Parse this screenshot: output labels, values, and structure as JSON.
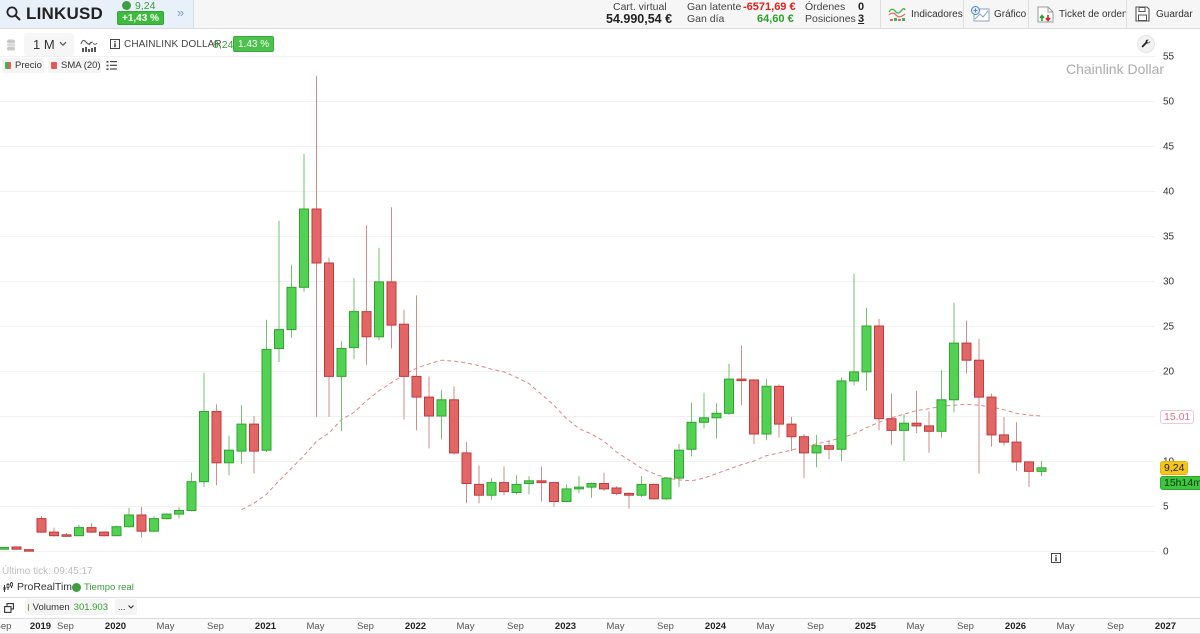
{
  "header": {
    "symbol": "LINKUSD",
    "price": "9,24",
    "change": "+1,43 %",
    "stats": {
      "virtual_label": "Cart. virtual",
      "virtual_value": "54.990,54 €",
      "latent_label": "Gan latente",
      "latent_value": "-6571,69 €",
      "day_label": "Gan día",
      "day_value": "64,60 €",
      "orders_label": "Órdenes",
      "orders_value": "0",
      "positions_label": "Posiciones",
      "positions_value": "3"
    },
    "buttons": {
      "indicators": "Indicadores",
      "chart": "Gráfico",
      "ticket": "Ticket de orden",
      "save": "Guardar"
    }
  },
  "icons": {
    "expand": "»",
    "search": "search-icon",
    "indicators": "indicators-icon",
    "chart": "add-chart-icon",
    "ticket": "order-ticket-icon",
    "save": "floppy-disk-icon",
    "wrench": "wrench-icon",
    "info": "info-icon"
  },
  "toolbar": {
    "timeframe": "1 M",
    "instrument_name": "CHAINLINK DOLLAR",
    "price": "9,24",
    "change": "1.43 %"
  },
  "legend": {
    "price": "Precio",
    "sma": "SMA (20)"
  },
  "watermark": "Chainlink Dollar",
  "price_tags": {
    "sma": "15.01",
    "last": "9,24",
    "countdown": "15h14m"
  },
  "footer": {
    "last_tick": "Último tick: 09:45:17",
    "provider": "ProRealTime",
    "realtime": "Tiempo real",
    "volume_label": "Volumen",
    "volume_value": "301.903",
    "more": "..."
  },
  "colors": {
    "up": "#52d152",
    "up_border": "#2ea62e",
    "up_wick": "#74c074",
    "down": "#e26666",
    "down_border": "#c23a3a",
    "down_wick": "#cf8d8d",
    "sma": "#e28585",
    "grid": "#f1f1f1",
    "axis_text": "#333333"
  },
  "chart_data": {
    "type": "candlestick",
    "title": "Chainlink Dollar",
    "symbol": "LINKUSD",
    "timeframe": "1 M",
    "xlabel": "",
    "ylabel": "",
    "ylim": [
      0,
      55
    ],
    "grid": true,
    "legend": [
      "Precio",
      "SMA (20)"
    ],
    "y_ticks": [
      0,
      5,
      10,
      15,
      20,
      25,
      30,
      35,
      40,
      45,
      50,
      55
    ],
    "x_ticks": [
      {
        "label": "Sep",
        "at": 0,
        "major": false
      },
      {
        "label": "2019",
        "at": 3,
        "major": true
      },
      {
        "label": "Sep",
        "at": 5,
        "major": false
      },
      {
        "label": "2020",
        "at": 9,
        "major": true
      },
      {
        "label": "May",
        "at": 13,
        "major": false
      },
      {
        "label": "Sep",
        "at": 17,
        "major": false
      },
      {
        "label": "2021",
        "at": 21,
        "major": true
      },
      {
        "label": "May",
        "at": 25,
        "major": false
      },
      {
        "label": "Sep",
        "at": 29,
        "major": false
      },
      {
        "label": "2022",
        "at": 33,
        "major": true
      },
      {
        "label": "May",
        "at": 37,
        "major": false
      },
      {
        "label": "Sep",
        "at": 41,
        "major": false
      },
      {
        "label": "2023",
        "at": 45,
        "major": true
      },
      {
        "label": "May",
        "at": 49,
        "major": false
      },
      {
        "label": "Sep",
        "at": 53,
        "major": false
      },
      {
        "label": "2024",
        "at": 57,
        "major": true
      },
      {
        "label": "May",
        "at": 61,
        "major": false
      },
      {
        "label": "Sep",
        "at": 65,
        "major": false
      },
      {
        "label": "2025",
        "at": 69,
        "major": true
      },
      {
        "label": "May",
        "at": 73,
        "major": false
      },
      {
        "label": "Sep",
        "at": 77,
        "major": false
      },
      {
        "label": "2026",
        "at": 81,
        "major": true
      },
      {
        "label": "May",
        "at": 85,
        "major": false
      },
      {
        "label": "Sep",
        "at": 89,
        "major": false
      },
      {
        "label": "2027",
        "at": 93,
        "major": true
      }
    ],
    "x": [
      null,
      null,
      null,
      "2019-07",
      "2019-08",
      "2019-09",
      "2019-10",
      "2019-11",
      "2019-12",
      "2020-01",
      "2020-02",
      "2020-03",
      "2020-04",
      "2020-05",
      "2020-06",
      "2020-07",
      "2020-08",
      "2020-09",
      "2020-10",
      "2020-11",
      "2020-12",
      "2021-01",
      "2021-02",
      "2021-03",
      "2021-04",
      "2021-05",
      "2021-06",
      "2021-07",
      "2021-08",
      "2021-09",
      "2021-10",
      "2021-11",
      "2021-12",
      "2022-01",
      "2022-02",
      "2022-03",
      "2022-04",
      "2022-05",
      "2022-06",
      "2022-07",
      "2022-08",
      "2022-09",
      "2022-10",
      "2022-11",
      "2022-12",
      "2023-01",
      "2023-02",
      "2023-03",
      "2023-04",
      "2023-05",
      "2023-06",
      "2023-07",
      "2023-08",
      "2023-09",
      "2023-10",
      "2023-11",
      "2023-12",
      "2024-01",
      "2024-02",
      "2024-03",
      "2024-04",
      "2024-05",
      "2024-06",
      "2024-07",
      "2024-08",
      "2024-09",
      "2024-10",
      "2024-11",
      "2024-12",
      "2025-01",
      "2025-02",
      "2025-03",
      "2025-04",
      "2025-05",
      "2025-06",
      "2025-07",
      "2025-08",
      "2025-09",
      "2025-10",
      "2025-11",
      "2025-12",
      "2026-01",
      "2026-02",
      "2026-03"
    ],
    "ohlc_columns": [
      "open",
      "high",
      "low",
      "close"
    ],
    "ohlc": [
      [
        0.2,
        0.45,
        0.15,
        0.4
      ],
      [
        0.45,
        0.5,
        0.15,
        0.2
      ],
      [
        0.15,
        0.2,
        0.1,
        0.12
      ],
      [
        3.6,
        3.9,
        2.0,
        2.1
      ],
      [
        2.1,
        2.6,
        1.6,
        1.7
      ],
      [
        1.8,
        2.0,
        1.6,
        1.75
      ],
      [
        1.7,
        2.9,
        1.7,
        2.6
      ],
      [
        2.6,
        3.1,
        2.0,
        2.1
      ],
      [
        2.1,
        2.2,
        1.6,
        1.7
      ],
      [
        1.7,
        2.8,
        1.7,
        2.7
      ],
      [
        2.7,
        4.8,
        2.6,
        4.0
      ],
      [
        4.0,
        4.9,
        1.5,
        2.2
      ],
      [
        2.2,
        3.9,
        2.1,
        3.6
      ],
      [
        3.6,
        4.2,
        3.5,
        4.1
      ],
      [
        4.1,
        4.9,
        3.6,
        4.5
      ],
      [
        4.5,
        8.7,
        4.4,
        7.7
      ],
      [
        7.7,
        19.8,
        7.1,
        15.5
      ],
      [
        15.5,
        16.3,
        7.3,
        9.8
      ],
      [
        9.8,
        12.8,
        8.4,
        11.2
      ],
      [
        11.1,
        16.2,
        9.7,
        14.1
      ],
      [
        14.1,
        15.0,
        8.6,
        11.1
      ],
      [
        11.2,
        25.7,
        11.0,
        22.4
      ],
      [
        22.5,
        36.7,
        21.0,
        24.6
      ],
      [
        24.6,
        31.8,
        23.7,
        29.3
      ],
      [
        29.3,
        44.1,
        28.8,
        38.0
      ],
      [
        38.0,
        52.8,
        14.9,
        32.0
      ],
      [
        32.0,
        32.6,
        14.9,
        19.4
      ],
      [
        19.4,
        23.3,
        13.3,
        22.5
      ],
      [
        22.6,
        30.3,
        21.3,
        26.6
      ],
      [
        26.6,
        36.2,
        20.7,
        23.8
      ],
      [
        23.8,
        33.7,
        23.4,
        29.9
      ],
      [
        29.9,
        38.2,
        22.5,
        25.1
      ],
      [
        25.2,
        26.8,
        14.6,
        19.4
      ],
      [
        19.4,
        28.4,
        13.4,
        17.1
      ],
      [
        17.1,
        19.4,
        11.4,
        15.0
      ],
      [
        15.0,
        17.9,
        12.4,
        16.8
      ],
      [
        16.8,
        18.3,
        10.7,
        10.9
      ],
      [
        10.9,
        12.1,
        5.3,
        7.5
      ],
      [
        7.4,
        9.5,
        5.3,
        6.2
      ],
      [
        6.2,
        8.1,
        5.7,
        7.6
      ],
      [
        7.6,
        9.4,
        6.2,
        6.6
      ],
      [
        6.5,
        8.4,
        6.3,
        7.4
      ],
      [
        7.5,
        8.3,
        6.3,
        7.8
      ],
      [
        7.8,
        9.4,
        5.5,
        7.6
      ],
      [
        7.6,
        7.7,
        4.9,
        5.5
      ],
      [
        5.5,
        7.4,
        5.4,
        6.9
      ],
      [
        6.9,
        8.3,
        6.4,
        7.1
      ],
      [
        7.1,
        7.6,
        5.9,
        7.5
      ],
      [
        7.5,
        8.7,
        6.7,
        6.9
      ],
      [
        7.0,
        7.2,
        6.2,
        6.4
      ],
      [
        6.4,
        6.5,
        4.7,
        6.2
      ],
      [
        6.2,
        8.3,
        6.0,
        7.4
      ],
      [
        7.4,
        7.5,
        5.7,
        5.8
      ],
      [
        5.8,
        8.2,
        5.7,
        8.1
      ],
      [
        8.1,
        11.9,
        7.1,
        11.2
      ],
      [
        11.3,
        16.5,
        10.5,
        14.3
      ],
      [
        14.3,
        17.6,
        13.6,
        14.8
      ],
      [
        14.8,
        16.4,
        12.5,
        15.3
      ],
      [
        15.3,
        20.8,
        15.1,
        19.1
      ],
      [
        19.1,
        22.8,
        16.2,
        19.0
      ],
      [
        19.0,
        19.1,
        11.9,
        13.0
      ],
      [
        13.0,
        19.1,
        12.3,
        18.3
      ],
      [
        18.3,
        18.5,
        12.6,
        14.1
      ],
      [
        14.1,
        14.9,
        11.1,
        12.7
      ],
      [
        12.7,
        13.0,
        8.1,
        10.9
      ],
      [
        10.9,
        12.9,
        9.3,
        11.7
      ],
      [
        11.7,
        12.3,
        10.2,
        11.3
      ],
      [
        11.3,
        19.3,
        10.0,
        18.9
      ],
      [
        18.9,
        30.8,
        18.4,
        19.9
      ],
      [
        19.9,
        27.0,
        17.8,
        25.0
      ],
      [
        25.0,
        25.8,
        13.4,
        14.7
      ],
      [
        14.7,
        17.5,
        11.8,
        13.4
      ],
      [
        13.4,
        15.2,
        10.0,
        14.2
      ],
      [
        14.2,
        17.8,
        13.1,
        13.9
      ],
      [
        13.9,
        15.5,
        10.9,
        13.3
      ],
      [
        13.3,
        20.1,
        12.6,
        16.8
      ],
      [
        16.8,
        27.6,
        15.4,
        23.1
      ],
      [
        23.1,
        25.6,
        19.7,
        21.2
      ],
      [
        21.2,
        23.6,
        8.6,
        17.1
      ],
      [
        17.1,
        17.5,
        11.6,
        12.9
      ],
      [
        12.9,
        14.9,
        11.7,
        12.1
      ],
      [
        12.1,
        14.3,
        8.9,
        9.9
      ],
      [
        9.9,
        9.9,
        7.1,
        8.85
      ],
      [
        8.85,
        10.0,
        8.3,
        9.24
      ]
    ],
    "series": [
      {
        "name": "Precio",
        "type": "candlestick"
      },
      {
        "name": "SMA (20)",
        "type": "line",
        "style": "dashed",
        "start_index": 19,
        "values": [
          4.6,
          5.3,
          6.3,
          7.8,
          9.2,
          10.6,
          12.2,
          13.1,
          14.6,
          15.4,
          16.7,
          17.8,
          18.7,
          19.6,
          20.3,
          20.8,
          21.2,
          21.1,
          20.9,
          20.6,
          20.2,
          19.9,
          19.3,
          18.6,
          17.4,
          16.2,
          14.7,
          13.6,
          13.0,
          12.2,
          11.0,
          10.1,
          9.2,
          8.6,
          8.1,
          7.9,
          7.8,
          8.1,
          8.6,
          9.1,
          9.6,
          10.0,
          10.6,
          10.9,
          11.2,
          11.6,
          11.9,
          12.2,
          12.6,
          13.0,
          13.7,
          14.3,
          14.8,
          15.2,
          15.6,
          15.8,
          16.1,
          16.2,
          16.3,
          16.2,
          16.0,
          15.7,
          15.3,
          15.1,
          15.01
        ]
      }
    ],
    "last_price": 9.24,
    "sma_last": 15.01,
    "annotations": [
      "15.01",
      "9,24",
      "15h14m"
    ]
  }
}
